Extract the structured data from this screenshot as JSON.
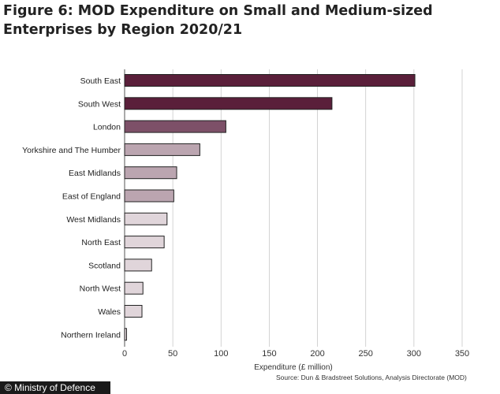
{
  "title": "Figure 6: MOD Expenditure on Small and Medium-sized Enterprises by Region 2020/21",
  "footer": {
    "credit": "© Ministry of Defence",
    "source": "Source: Dun & Bradstreet Solutions, Analysis Directorate (MOD)"
  },
  "chart_data": {
    "type": "bar",
    "orientation": "horizontal",
    "title": "Figure 6: MOD Expenditure on Small and Medium-sized Enterprises by Region 2020/21",
    "xlabel": "Expenditure (£ million)",
    "ylabel": "",
    "xlim": [
      0,
      350
    ],
    "xticks": [
      0,
      50,
      100,
      150,
      200,
      250,
      300,
      350
    ],
    "grid": true,
    "categories": [
      "South East",
      "South West",
      "London",
      "Yorkshire and The Humber",
      "East Midlands",
      "East of England",
      "West Midlands",
      "North East",
      "Scotland",
      "North West",
      "Wales",
      "Northern Ireland"
    ],
    "values": [
      301,
      215,
      105,
      78,
      54,
      51,
      44,
      41,
      28,
      19,
      18,
      2
    ],
    "colors": [
      "#5a1f3a",
      "#5a1f3a",
      "#7d5068",
      "#bba5b0",
      "#bba5b0",
      "#bba5b0",
      "#e0d5da",
      "#e0d5da",
      "#e0d5da",
      "#e0d5da",
      "#e0d5da",
      "#e0d5da"
    ]
  }
}
